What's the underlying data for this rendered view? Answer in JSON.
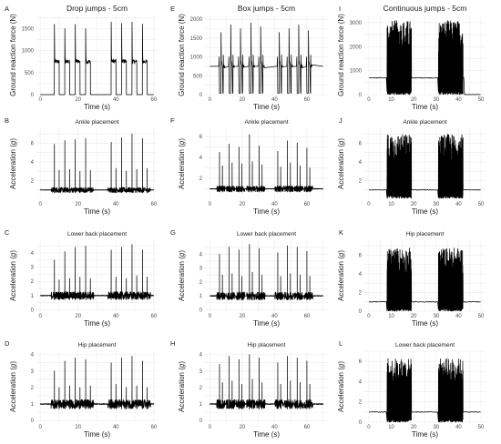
{
  "chart_data": [
    {
      "letter": "A",
      "type": "line",
      "title": "Drop jumps - 5cm",
      "xlabel": "Time (s)",
      "ylabel": "Ground reaction force (N)",
      "xlim": [
        -2,
        62
      ],
      "ylim": [
        0,
        1800
      ],
      "xticks": [
        0,
        20,
        40,
        60
      ],
      "yticks": [
        0,
        500,
        1000,
        1500
      ],
      "grid": true,
      "color": "#000000",
      "series": [
        {
          "baseline": 0,
          "end": 60,
          "events": [
            {
              "t": 7.5,
              "len": 2.5,
              "level": 750,
              "peak": 1600
            },
            {
              "t": 13.0,
              "len": 2.5,
              "level": 750,
              "peak": 1500
            },
            {
              "t": 18.5,
              "len": 2.5,
              "level": 760,
              "peak": 1600
            },
            {
              "t": 24.0,
              "len": 2.5,
              "level": 750,
              "peak": 1500
            },
            {
              "t": 37.5,
              "len": 2.5,
              "level": 760,
              "peak": 1650
            },
            {
              "t": 43.0,
              "len": 2.5,
              "level": 760,
              "peak": 1620
            },
            {
              "t": 48.5,
              "len": 2.5,
              "level": 750,
              "peak": 1650
            },
            {
              "t": 54.0,
              "len": 2.5,
              "level": 750,
              "peak": 1600
            }
          ]
        }
      ]
    },
    {
      "letter": "E",
      "type": "line",
      "title": "Box jumps - 5cm",
      "xlabel": "Time (s)",
      "ylabel": "Ground reaction force (N)",
      "xlim": [
        -3,
        73
      ],
      "ylim": [
        0,
        2100
      ],
      "xticks": [
        0,
        20,
        40,
        60
      ],
      "yticks": [
        0,
        500,
        1000,
        1500,
        2000
      ],
      "grid": true,
      "color": "#000000",
      "series": [
        {
          "baseline": 750,
          "end": 70,
          "events": [
            {
              "t": 6.0,
              "peak": 1650,
              "gap": 1.8
            },
            {
              "t": 12.0,
              "peak": 1850,
              "gap": 1.8
            },
            {
              "t": 18.0,
              "peak": 1750,
              "gap": 1.8
            },
            {
              "t": 24.5,
              "peak": 1900,
              "gap": 1.8
            },
            {
              "t": 30.5,
              "peak": 1800,
              "gap": 1.8
            },
            {
              "t": 42.0,
              "peak": 1650,
              "gap": 1.8
            },
            {
              "t": 48.0,
              "peak": 1750,
              "gap": 1.8
            },
            {
              "t": 54.0,
              "peak": 1850,
              "gap": 1.8
            },
            {
              "t": 60.0,
              "peak": 1700,
              "gap": 1.8
            }
          ]
        }
      ]
    },
    {
      "letter": "I",
      "type": "line",
      "title": "Continuous jumps - 5cm",
      "xlabel": "Time (s)",
      "ylabel": "Ground reaction force (N)",
      "xlim": [
        -2,
        52
      ],
      "ylim": [
        0,
        3300
      ],
      "xticks": [
        0,
        10,
        20,
        30,
        40,
        50
      ],
      "yticks": [
        0,
        1000,
        2000,
        3000
      ],
      "grid": true,
      "color": "#000000",
      "series": [
        {
          "baseline": 700,
          "end_baseline": 0,
          "end": 50,
          "bursts": [
            {
              "start": 8,
              "end": 19,
              "min": 0,
              "max": 3100
            },
            {
              "start": 31,
              "end": 42,
              "min": 0,
              "max": 3100
            }
          ]
        }
      ]
    },
    {
      "letter": "B",
      "type": "line",
      "title": "Ankle placement",
      "xlabel": "Time (s)",
      "ylabel": "Acceleration (g)",
      "xlim": [
        -2,
        62
      ],
      "ylim": [
        0,
        7.6
      ],
      "xticks": [
        0,
        20,
        40,
        60
      ],
      "yticks": [
        2,
        4,
        6
      ],
      "grid": true,
      "color": "#000000",
      "series": [
        {
          "baseline": 1,
          "end": 60,
          "spikes": [
            {
              "t": 7.5,
              "peak": 5.9
            },
            {
              "t": 10.0,
              "peak": 3.1
            },
            {
              "t": 13.0,
              "peak": 6.3
            },
            {
              "t": 15.5,
              "peak": 3.2
            },
            {
              "t": 18.5,
              "peak": 6.4
            },
            {
              "t": 21.0,
              "peak": 3.0
            },
            {
              "t": 24.0,
              "peak": 6.5
            },
            {
              "t": 26.5,
              "peak": 3.1
            },
            {
              "t": 37.5,
              "peak": 6.1
            },
            {
              "t": 40.0,
              "peak": 3.3
            },
            {
              "t": 43.0,
              "peak": 6.6
            },
            {
              "t": 45.5,
              "peak": 3.0
            },
            {
              "t": 48.5,
              "peak": 7.0
            },
            {
              "t": 51.0,
              "peak": 3.2
            },
            {
              "t": 54.0,
              "peak": 6.5
            },
            {
              "t": 56.5,
              "peak": 3.3
            }
          ]
        }
      ]
    },
    {
      "letter": "F",
      "type": "line",
      "title": "Ankle placement",
      "xlabel": "Time (s)",
      "ylabel": "Acceleration (g)",
      "xlim": [
        -3,
        73
      ],
      "ylim": [
        0,
        6.8
      ],
      "xticks": [
        0,
        20,
        40,
        60
      ],
      "yticks": [
        2,
        4,
        6
      ],
      "grid": true,
      "color": "#000000",
      "series": [
        {
          "baseline": 1,
          "end": 70,
          "spikes": [
            {
              "t": 6.0,
              "peak": 4.5
            },
            {
              "t": 7.8,
              "peak": 3.2
            },
            {
              "t": 12.0,
              "peak": 5.3
            },
            {
              "t": 13.8,
              "peak": 3.5
            },
            {
              "t": 18.0,
              "peak": 5.0
            },
            {
              "t": 19.8,
              "peak": 3.4
            },
            {
              "t": 24.5,
              "peak": 6.2
            },
            {
              "t": 26.3,
              "peak": 3.6
            },
            {
              "t": 30.5,
              "peak": 5.1
            },
            {
              "t": 32.3,
              "peak": 3.3
            },
            {
              "t": 42.0,
              "peak": 4.6
            },
            {
              "t": 43.8,
              "peak": 3.1
            },
            {
              "t": 48.0,
              "peak": 5.6
            },
            {
              "t": 49.8,
              "peak": 3.5
            },
            {
              "t": 54.0,
              "peak": 5.4
            },
            {
              "t": 55.8,
              "peak": 3.2
            },
            {
              "t": 60.0,
              "peak": 4.9
            },
            {
              "t": 61.8,
              "peak": 3.0
            }
          ]
        }
      ]
    },
    {
      "letter": "J",
      "type": "line",
      "title": "Ankle placement",
      "xlabel": "Time (s)",
      "ylabel": "Acceleration (g)",
      "xlim": [
        -2,
        52
      ],
      "ylim": [
        0,
        7.6
      ],
      "xticks": [
        0,
        10,
        20,
        30,
        40,
        50
      ],
      "yticks": [
        2,
        4,
        6
      ],
      "grid": true,
      "color": "#000000",
      "series": [
        {
          "baseline": 1,
          "end": 50,
          "bursts": [
            {
              "start": 8,
              "end": 19,
              "min": 0.1,
              "max": 7.0
            },
            {
              "start": 31,
              "end": 42,
              "min": 0.1,
              "max": 7.0
            }
          ]
        }
      ]
    },
    {
      "letter": "C",
      "type": "line",
      "title": "Lower back placement",
      "xlabel": "Time (s)",
      "ylabel": "Acceleration (g)",
      "xlim": [
        -2,
        62
      ],
      "ylim": [
        -0.1,
        4.9
      ],
      "xticks": [
        0,
        20,
        40,
        60
      ],
      "yticks": [
        0,
        1,
        2,
        3,
        4
      ],
      "grid": true,
      "color": "#000000",
      "series": [
        {
          "baseline": 1,
          "end": 60,
          "spikes": [
            {
              "t": 7.5,
              "peak": 3.5
            },
            {
              "t": 10.0,
              "peak": 2.1
            },
            {
              "t": 13.0,
              "peak": 4.1
            },
            {
              "t": 15.5,
              "peak": 2.2
            },
            {
              "t": 18.5,
              "peak": 4.4
            },
            {
              "t": 21.0,
              "peak": 2.3
            },
            {
              "t": 24.0,
              "peak": 4.5
            },
            {
              "t": 26.5,
              "peak": 2.2
            },
            {
              "t": 37.5,
              "peak": 4.2
            },
            {
              "t": 40.0,
              "peak": 2.3
            },
            {
              "t": 43.0,
              "peak": 4.4
            },
            {
              "t": 45.5,
              "peak": 2.2
            },
            {
              "t": 48.5,
              "peak": 4.6
            },
            {
              "t": 51.0,
              "peak": 2.4
            },
            {
              "t": 54.0,
              "peak": 4.2
            },
            {
              "t": 56.5,
              "peak": 2.3
            }
          ]
        }
      ]
    },
    {
      "letter": "G",
      "type": "line",
      "title": "Lower back placement",
      "xlabel": "Time (s)",
      "ylabel": "Acceleration (g)",
      "xlim": [
        -3,
        73
      ],
      "ylim": [
        -0.1,
        5.0
      ],
      "xticks": [
        0,
        20,
        40,
        60
      ],
      "yticks": [
        0,
        1,
        2,
        3,
        4
      ],
      "grid": true,
      "color": "#000000",
      "series": [
        {
          "baseline": 1,
          "end": 70,
          "spikes": [
            {
              "t": 6.0,
              "peak": 4.0
            },
            {
              "t": 7.8,
              "peak": 2.5
            },
            {
              "t": 12.0,
              "peak": 4.5
            },
            {
              "t": 13.8,
              "peak": 2.6
            },
            {
              "t": 18.0,
              "peak": 4.3
            },
            {
              "t": 19.8,
              "peak": 2.4
            },
            {
              "t": 24.5,
              "peak": 4.7
            },
            {
              "t": 26.3,
              "peak": 2.7
            },
            {
              "t": 30.5,
              "peak": 4.4
            },
            {
              "t": 32.3,
              "peak": 2.5
            },
            {
              "t": 42.0,
              "peak": 4.1
            },
            {
              "t": 43.8,
              "peak": 2.4
            },
            {
              "t": 48.0,
              "peak": 4.6
            },
            {
              "t": 49.8,
              "peak": 2.6
            },
            {
              "t": 54.0,
              "peak": 4.5
            },
            {
              "t": 55.8,
              "peak": 2.5
            },
            {
              "t": 60.0,
              "peak": 4.2
            },
            {
              "t": 61.8,
              "peak": 2.4
            }
          ]
        }
      ]
    },
    {
      "letter": "K",
      "type": "line",
      "title": "Hip placement",
      "xlabel": "Time (s)",
      "ylabel": "Acceleration (g)",
      "xlim": [
        -2,
        52
      ],
      "ylim": [
        0,
        7.6
      ],
      "xticks": [
        0,
        10,
        20,
        30,
        40,
        50
      ],
      "yticks": [
        0,
        2,
        4,
        6
      ],
      "grid": true,
      "color": "#000000",
      "series": [
        {
          "baseline": 1,
          "end": 50,
          "bursts": [
            {
              "start": 8,
              "end": 19,
              "min": 0,
              "max": 6.8
            },
            {
              "start": 31,
              "end": 42,
              "min": 0,
              "max": 6.8
            }
          ]
        }
      ]
    },
    {
      "letter": "D",
      "type": "line",
      "title": "Hip placement",
      "xlabel": "Time (s)",
      "ylabel": "Acceleration (g)",
      "xlim": [
        -2,
        62
      ],
      "ylim": [
        -0.1,
        4.2
      ],
      "xticks": [
        0,
        20,
        40,
        60
      ],
      "yticks": [
        0,
        1,
        2,
        3,
        4
      ],
      "grid": true,
      "color": "#000000",
      "series": [
        {
          "baseline": 1,
          "end": 60,
          "spikes": [
            {
              "t": 7.5,
              "peak": 3.0
            },
            {
              "t": 10.0,
              "peak": 2.0
            },
            {
              "t": 13.0,
              "peak": 3.6
            },
            {
              "t": 15.5,
              "peak": 2.1
            },
            {
              "t": 18.5,
              "peak": 3.8
            },
            {
              "t": 21.0,
              "peak": 2.0
            },
            {
              "t": 24.0,
              "peak": 3.7
            },
            {
              "t": 26.5,
              "peak": 2.1
            },
            {
              "t": 37.5,
              "peak": 3.5
            },
            {
              "t": 40.0,
              "peak": 2.2
            },
            {
              "t": 43.0,
              "peak": 3.8
            },
            {
              "t": 45.5,
              "peak": 2.0
            },
            {
              "t": 48.5,
              "peak": 3.9
            },
            {
              "t": 51.0,
              "peak": 2.1
            },
            {
              "t": 54.0,
              "peak": 3.6
            },
            {
              "t": 56.5,
              "peak": 2.0
            }
          ]
        }
      ]
    },
    {
      "letter": "H",
      "type": "line",
      "title": "Hip placement",
      "xlabel": "Time (s)",
      "ylabel": "Acceleration (g)",
      "xlim": [
        -3,
        73
      ],
      "ylim": [
        -0.1,
        4.2
      ],
      "xticks": [
        0,
        20,
        40,
        60
      ],
      "yticks": [
        0,
        1,
        2,
        3,
        4
      ],
      "grid": true,
      "color": "#000000",
      "series": [
        {
          "baseline": 1,
          "end": 70,
          "spikes": [
            {
              "t": 6.0,
              "peak": 3.4
            },
            {
              "t": 7.8,
              "peak": 2.3
            },
            {
              "t": 12.0,
              "peak": 3.9
            },
            {
              "t": 13.8,
              "peak": 2.4
            },
            {
              "t": 18.0,
              "peak": 3.7
            },
            {
              "t": 19.8,
              "peak": 2.2
            },
            {
              "t": 24.5,
              "peak": 4.0
            },
            {
              "t": 26.3,
              "peak": 2.5
            },
            {
              "t": 30.5,
              "peak": 3.8
            },
            {
              "t": 32.3,
              "peak": 2.3
            },
            {
              "t": 42.0,
              "peak": 3.5
            },
            {
              "t": 43.8,
              "peak": 2.2
            },
            {
              "t": 48.0,
              "peak": 3.9
            },
            {
              "t": 49.8,
              "peak": 2.4
            },
            {
              "t": 54.0,
              "peak": 3.8
            },
            {
              "t": 55.8,
              "peak": 2.3
            },
            {
              "t": 60.0,
              "peak": 3.6
            },
            {
              "t": 61.8,
              "peak": 2.2
            }
          ]
        }
      ]
    },
    {
      "letter": "L",
      "type": "line",
      "title": "Lower back placement",
      "xlabel": "Time (s)",
      "ylabel": "Acceleration (g)",
      "xlim": [
        -2,
        52
      ],
      "ylim": [
        0,
        7.0
      ],
      "xticks": [
        0,
        10,
        20,
        30,
        40,
        50
      ],
      "yticks": [
        0,
        2,
        4,
        6
      ],
      "grid": true,
      "color": "#000000",
      "series": [
        {
          "baseline": 1,
          "end": 50,
          "bursts": [
            {
              "start": 8,
              "end": 19,
              "min": 0,
              "max": 6.3
            },
            {
              "start": 31,
              "end": 42,
              "min": 0,
              "max": 6.3
            }
          ]
        }
      ]
    }
  ]
}
